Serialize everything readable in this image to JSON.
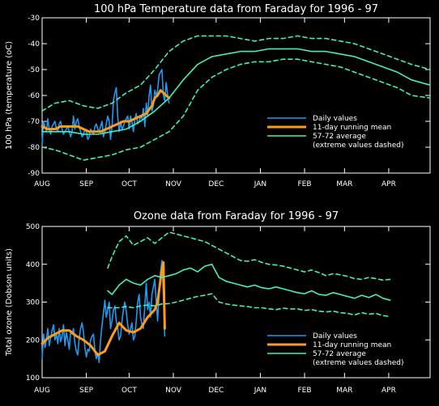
{
  "colors": {
    "daily": "#1e9bf0",
    "running_mean": "#ff9a1a",
    "average": "#40f0c0",
    "axis": "#ffffff",
    "background": "#000000"
  },
  "chart_data": [
    {
      "type": "line",
      "title": "100 hPa Temperature data from Faraday for 1996 - 97",
      "xlabel": "",
      "ylabel": "100 hPa (temperature (oC)",
      "x_unit": "day of season (1 = 1 Aug 1996)",
      "xlim": [
        1,
        273
      ],
      "ylim": [
        -90,
        -30
      ],
      "x_ticks": [
        {
          "label": "AUG",
          "x": 1
        },
        {
          "label": "SEP",
          "x": 32
        },
        {
          "label": "OCT",
          "x": 62
        },
        {
          "label": "NOV",
          "x": 93
        },
        {
          "label": "DEC",
          "x": 123
        },
        {
          "label": "JAN",
          "x": 154
        },
        {
          "label": "FEB",
          "x": 185
        },
        {
          "label": "MAR",
          "x": 213
        },
        {
          "label": "APR",
          "x": 244
        }
      ],
      "y_ticks": [
        -90,
        -80,
        -70,
        -60,
        -50,
        -40,
        -30
      ],
      "legend": {
        "position": "bottom-right",
        "entries": [
          "Daily values",
          "11-day running mean",
          "57-72 average",
          "(extreme values dashed)"
        ]
      },
      "series": [
        {
          "name": "Daily values",
          "style": "daily",
          "x": [
            1,
            2,
            3,
            4,
            5,
            6,
            7,
            8,
            9,
            10,
            11,
            12,
            13,
            14,
            15,
            16,
            17,
            18,
            19,
            20,
            21,
            22,
            23,
            24,
            25,
            26,
            27,
            28,
            29,
            30,
            31,
            32,
            33,
            34,
            35,
            36,
            37,
            38,
            39,
            40,
            41,
            42,
            43,
            44,
            45,
            46,
            47,
            48,
            49,
            50,
            51,
            52,
            53,
            54,
            55,
            56,
            57,
            58,
            59,
            60,
            61,
            62,
            63,
            64,
            65,
            66,
            67,
            68,
            69,
            70,
            71,
            72,
            73,
            74,
            75,
            76,
            77,
            78,
            79,
            80,
            81,
            82,
            83,
            84,
            85,
            86,
            87,
            88,
            89,
            90
          ],
          "y": [
            -79,
            -70,
            -72,
            -74,
            -69,
            -73,
            -75,
            -72,
            -71,
            -70,
            -73,
            -74,
            -71,
            -70,
            -73,
            -75,
            -74,
            -73,
            -72,
            -74,
            -76,
            -74,
            -68,
            -73,
            -70,
            -69,
            -72,
            -74,
            -76,
            -75,
            -73,
            -74,
            -77,
            -76,
            -73,
            -74,
            -75,
            -72,
            -71,
            -73,
            -74,
            -72,
            -70,
            -76,
            -74,
            -71,
            -68,
            -70,
            -77,
            -72,
            -62,
            -59,
            -57,
            -68,
            -74,
            -70,
            -73,
            -72,
            -70,
            -69,
            -68,
            -73,
            -68,
            -70,
            -74,
            -69,
            -67,
            -71,
            -70,
            -68,
            -69,
            -65,
            -72,
            -63,
            -68,
            -60,
            -56,
            -66,
            -64,
            -58,
            -60,
            -58,
            -52,
            -51,
            -50,
            -60,
            -62,
            -55,
            -60,
            -63
          ]
        },
        {
          "name": "11-day running mean",
          "style": "mean",
          "x": [
            1,
            5,
            10,
            14,
            18,
            22,
            26,
            30,
            34,
            38,
            42,
            46,
            50,
            54,
            58,
            62,
            66,
            70,
            74,
            78,
            80,
            82,
            84,
            86,
            88,
            90
          ],
          "y": [
            -72,
            -73,
            -73,
            -72,
            -72,
            -72,
            -72,
            -73,
            -74,
            -74,
            -74,
            -73,
            -72,
            -71,
            -70,
            -70,
            -69,
            -68,
            -67,
            -64,
            -61,
            -60,
            -58,
            -59,
            -60,
            -61
          ]
        },
        {
          "name": "57-72 average",
          "style": "avg",
          "x": [
            1,
            10,
            20,
            30,
            40,
            50,
            60,
            70,
            80,
            90,
            100,
            110,
            120,
            130,
            140,
            150,
            160,
            170,
            180,
            190,
            200,
            210,
            220,
            230,
            240,
            250,
            260,
            273
          ],
          "y": [
            -74,
            -74,
            -74,
            -75,
            -75,
            -74,
            -73,
            -70,
            -66,
            -61,
            -54,
            -48,
            -45,
            -44,
            -43,
            -43,
            -42,
            -42,
            -42,
            -43,
            -43,
            -44,
            -45,
            -47,
            -49,
            -51,
            -54,
            -56
          ]
        },
        {
          "name": "57-72 average (max)",
          "style": "avg-dash",
          "x": [
            1,
            10,
            20,
            30,
            40,
            50,
            60,
            70,
            80,
            90,
            100,
            110,
            120,
            130,
            140,
            150,
            160,
            170,
            180,
            190,
            200,
            210,
            220,
            230,
            240,
            250,
            260,
            273
          ],
          "y": [
            -66,
            -63,
            -62,
            -64,
            -65,
            -63,
            -59,
            -56,
            -50,
            -43,
            -39,
            -37,
            -37,
            -37,
            -38,
            -39,
            -38,
            -38,
            -37,
            -38,
            -38,
            -39,
            -40,
            -42,
            -44,
            -46,
            -48,
            -50
          ]
        },
        {
          "name": "57-72 average (min)",
          "style": "avg-dash",
          "x": [
            1,
            10,
            20,
            30,
            40,
            50,
            60,
            70,
            80,
            90,
            100,
            110,
            120,
            130,
            140,
            150,
            160,
            170,
            180,
            190,
            200,
            210,
            220,
            230,
            240,
            250,
            260,
            273
          ],
          "y": [
            -80,
            -81,
            -83,
            -85,
            -84,
            -83,
            -81,
            -80,
            -77,
            -74,
            -68,
            -58,
            -53,
            -50,
            -48,
            -47,
            -47,
            -46,
            -46,
            -47,
            -48,
            -49,
            -51,
            -53,
            -55,
            -57,
            -60,
            -61
          ]
        }
      ]
    },
    {
      "type": "line",
      "title": "Ozone data from Faraday for 1996 - 97",
      "xlabel": "",
      "ylabel": "Total ozone (Dobson units)",
      "x_unit": "day of season (1 = 1 Aug 1996)",
      "xlim": [
        1,
        273
      ],
      "ylim": [
        100,
        500
      ],
      "x_ticks": [
        {
          "label": "AUG",
          "x": 1
        },
        {
          "label": "SEP",
          "x": 32
        },
        {
          "label": "OCT",
          "x": 62
        },
        {
          "label": "NOV",
          "x": 93
        },
        {
          "label": "DEC",
          "x": 123
        },
        {
          "label": "JAN",
          "x": 154
        },
        {
          "label": "FEB",
          "x": 185
        },
        {
          "label": "MAR",
          "x": 213
        },
        {
          "label": "APR",
          "x": 244
        }
      ],
      "y_ticks": [
        100,
        200,
        300,
        400,
        500
      ],
      "legend": {
        "position": "bottom-right",
        "entries": [
          "Daily values",
          "11-day running mean",
          "57-72 average",
          "(extreme values dashed)"
        ]
      },
      "series": [
        {
          "name": "Daily values",
          "style": "daily",
          "x": [
            1,
            2,
            3,
            4,
            5,
            6,
            7,
            8,
            9,
            10,
            11,
            12,
            13,
            14,
            15,
            16,
            17,
            18,
            19,
            20,
            21,
            22,
            23,
            24,
            25,
            26,
            27,
            28,
            29,
            30,
            31,
            32,
            33,
            34,
            35,
            36,
            37,
            38,
            39,
            40,
            41,
            42,
            43,
            44,
            45,
            46,
            47,
            48,
            49,
            50,
            51,
            52,
            53,
            54,
            55,
            56,
            57,
            58,
            59,
            60,
            61,
            62,
            63,
            64,
            65,
            66,
            67,
            68,
            69,
            70,
            71,
            72,
            73,
            74,
            75,
            76,
            77,
            78,
            79,
            80,
            81,
            82,
            83,
            84,
            85,
            86,
            87
          ],
          "y": [
            150,
            215,
            180,
            200,
            230,
            185,
            205,
            225,
            240,
            200,
            215,
            190,
            230,
            195,
            210,
            240,
            185,
            220,
            200,
            175,
            225,
            215,
            230,
            190,
            170,
            160,
            205,
            230,
            245,
            220,
            180,
            155,
            175,
            170,
            200,
            210,
            215,
            170,
            150,
            165,
            140,
            200,
            240,
            270,
            305,
            260,
            280,
            300,
            230,
            250,
            280,
            290,
            250,
            230,
            200,
            210,
            250,
            280,
            300,
            275,
            240,
            215,
            230,
            245,
            200,
            210,
            250,
            300,
            320,
            260,
            240,
            230,
            290,
            350,
            280,
            300,
            260,
            320,
            340,
            360,
            300,
            250,
            320,
            380,
            410,
            320,
            210
          ]
        },
        {
          "name": "11-day running mean",
          "style": "mean",
          "x": [
            1,
            5,
            10,
            15,
            20,
            25,
            30,
            35,
            40,
            45,
            50,
            55,
            60,
            65,
            70,
            75,
            80,
            82,
            84,
            86,
            87
          ],
          "y": [
            190,
            205,
            215,
            225,
            225,
            210,
            200,
            185,
            160,
            170,
            210,
            245,
            225,
            220,
            230,
            260,
            280,
            300,
            360,
            405,
            230
          ]
        },
        {
          "name": "57-72 average",
          "style": "avg",
          "x": [
            47,
            50,
            55,
            60,
            65,
            70,
            75,
            80,
            85,
            90,
            95,
            100,
            105,
            110,
            115,
            120,
            125,
            130,
            135,
            140,
            145,
            150,
            155,
            160,
            165,
            170,
            175,
            180,
            185,
            190,
            195,
            200,
            205,
            210,
            215,
            220,
            225,
            230,
            235,
            240,
            245
          ],
          "y": [
            330,
            320,
            345,
            360,
            350,
            345,
            360,
            370,
            365,
            370,
            375,
            385,
            390,
            380,
            395,
            400,
            365,
            355,
            350,
            345,
            340,
            345,
            338,
            335,
            340,
            335,
            330,
            325,
            322,
            330,
            320,
            318,
            325,
            320,
            315,
            310,
            318,
            312,
            320,
            310,
            305
          ]
        },
        {
          "name": "57-72 average (max)",
          "style": "avg-dash",
          "x": [
            47,
            50,
            55,
            60,
            65,
            70,
            75,
            80,
            85,
            90,
            95,
            100,
            105,
            110,
            115,
            120,
            125,
            130,
            135,
            140,
            145,
            150,
            155,
            160,
            165,
            170,
            175,
            180,
            185,
            190,
            195,
            200,
            205,
            210,
            215,
            220,
            225,
            230,
            235,
            240,
            245
          ],
          "y": [
            390,
            420,
            460,
            475,
            450,
            460,
            470,
            455,
            470,
            485,
            480,
            475,
            470,
            465,
            460,
            450,
            440,
            430,
            420,
            410,
            408,
            412,
            405,
            400,
            398,
            395,
            390,
            385,
            380,
            385,
            378,
            370,
            375,
            372,
            368,
            362,
            360,
            365,
            362,
            358,
            360
          ]
        },
        {
          "name": "57-72 average (min)",
          "style": "avg-dash",
          "x": [
            47,
            50,
            55,
            60,
            65,
            70,
            75,
            80,
            85,
            90,
            95,
            100,
            105,
            110,
            115,
            120,
            125,
            130,
            135,
            140,
            145,
            150,
            155,
            160,
            165,
            170,
            175,
            180,
            185,
            190,
            195,
            200,
            205,
            210,
            215,
            220,
            225,
            230,
            235,
            240,
            245
          ],
          "y": [
            285,
            285,
            285,
            288,
            285,
            290,
            292,
            290,
            295,
            296,
            300,
            305,
            310,
            315,
            318,
            322,
            300,
            295,
            292,
            290,
            288,
            285,
            285,
            282,
            280,
            284,
            282,
            282,
            278,
            280,
            276,
            274,
            276,
            272,
            270,
            266,
            272,
            268,
            270,
            264,
            262
          ]
        }
      ]
    }
  ]
}
